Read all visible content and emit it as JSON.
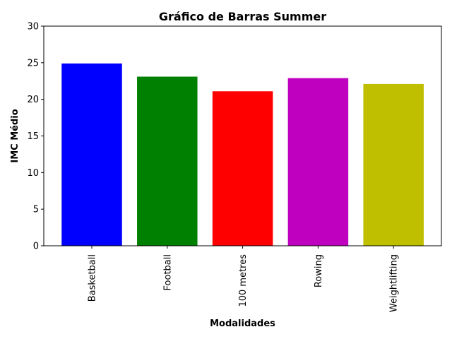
{
  "chart_data": {
    "type": "bar",
    "title": "Gráfico de Barras Summer",
    "xlabel": "Modalidades",
    "ylabel": "IMC Médio",
    "categories": [
      "Basketball",
      "Football",
      "100 metres",
      "Rowing",
      "Weightlifting"
    ],
    "values": [
      24.9,
      23.1,
      21.1,
      22.9,
      22.1
    ],
    "colors": [
      "#0000ff",
      "#008000",
      "#ff0000",
      "#bf00bf",
      "#bfbf00"
    ],
    "ylim": [
      0,
      30
    ],
    "yticks": [
      0,
      5,
      10,
      15,
      20,
      25,
      30
    ],
    "grid": false,
    "legend": "none"
  }
}
